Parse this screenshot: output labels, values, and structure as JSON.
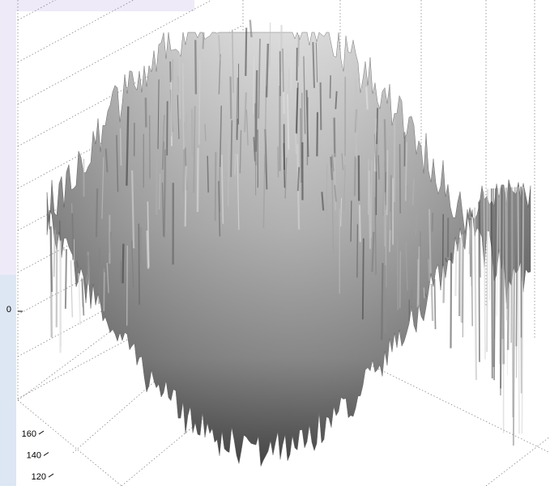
{
  "chart_data": {
    "type": "surface",
    "zticks": [
      0
    ],
    "yticks": [
      160,
      140,
      120
    ]
  }
}
